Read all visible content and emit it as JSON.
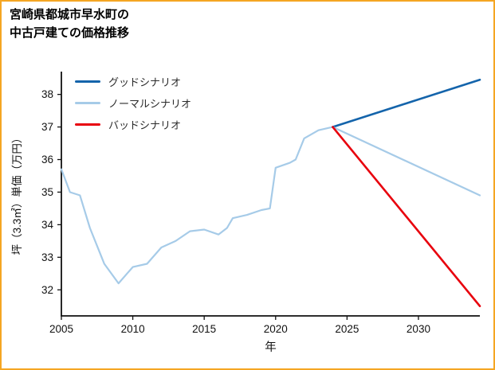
{
  "page": {
    "border_color": "#f5a623",
    "background": "#ffffff"
  },
  "title": {
    "line1": "宮崎県都城市早水町の",
    "line2": "中古戸建ての価格推移"
  },
  "chart_data": {
    "type": "line",
    "title": "宮崎県都城市早水町の中古戸建ての価格推移",
    "xlabel": "年",
    "ylabel": "坪（3.3㎡）単価（万円）",
    "xlim": [
      2005,
      2034.3
    ],
    "ylim": [
      31.2,
      38.7
    ],
    "xticks": [
      2005,
      2010,
      2015,
      2020,
      2025,
      2030
    ],
    "yticks": [
      32,
      33,
      34,
      35,
      36,
      37,
      38
    ],
    "grid": false,
    "legend_position": "upper-left",
    "legend": [
      {
        "label": "グッドシナリオ",
        "color": "#1464ab"
      },
      {
        "label": "ノーマルシナリオ",
        "color": "#a6cbe8"
      },
      {
        "label": "バッドシナリオ",
        "color": "#e8000d"
      }
    ],
    "series": [
      {
        "name": "historical",
        "color": "#a6cbe8",
        "width": 2.2,
        "x": [
          2005,
          2005.6,
          2006.3,
          2007,
          2008,
          2009,
          2009.6,
          2010,
          2011,
          2012,
          2013,
          2014,
          2015,
          2016,
          2016.6,
          2017,
          2018,
          2019,
          2019.6,
          2020,
          2021,
          2021.4,
          2022,
          2023,
          2024
        ],
        "y": [
          35.7,
          35.0,
          34.9,
          33.9,
          32.8,
          32.2,
          32.5,
          32.7,
          32.8,
          33.3,
          33.5,
          33.8,
          33.85,
          33.7,
          33.9,
          34.2,
          34.3,
          34.45,
          34.5,
          35.75,
          35.9,
          36.0,
          36.65,
          36.9,
          37.0
        ]
      },
      {
        "name": "グッドシナリオ",
        "color": "#1464ab",
        "width": 2.6,
        "x": [
          2024,
          2034.3
        ],
        "y": [
          37.0,
          38.45
        ]
      },
      {
        "name": "ノーマルシナリオ",
        "color": "#a6cbe8",
        "width": 2.2,
        "x": [
          2024,
          2034.3
        ],
        "y": [
          37.0,
          34.9
        ]
      },
      {
        "name": "バッドシナリオ",
        "color": "#e8000d",
        "width": 2.6,
        "x": [
          2024,
          2034.3
        ],
        "y": [
          37.0,
          31.5
        ]
      }
    ]
  }
}
